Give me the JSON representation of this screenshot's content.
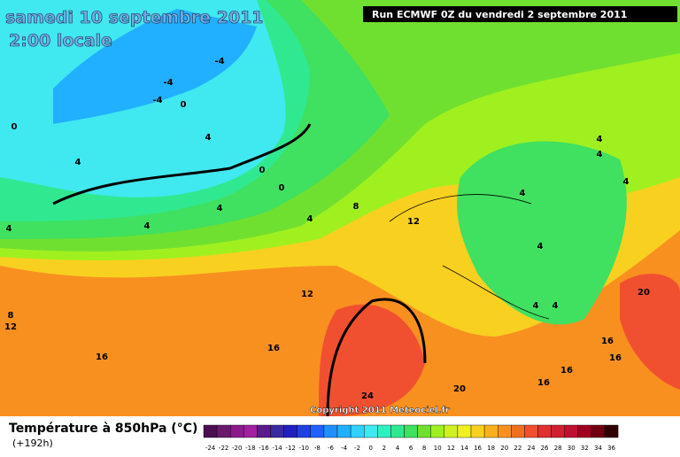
{
  "header": {
    "date": "samedi 10 septembre 2011",
    "time": "2:00 locale",
    "run": "Run ECMWF 0Z du vendredi 2 septembre 2011"
  },
  "copyright": "Copyright 2011 Meteociel.fr",
  "footer": {
    "title": "Température à 850hPa (°C)",
    "lead": "(+192h)"
  },
  "legend": {
    "values": [
      -24,
      -22,
      -20,
      -18,
      -16,
      -14,
      -12,
      -10,
      -8,
      -6,
      -4,
      -2,
      0,
      2,
      4,
      6,
      8,
      10,
      12,
      14,
      16,
      18,
      20,
      22,
      24,
      26,
      28,
      30,
      32,
      34,
      36
    ],
    "colors": [
      "#4b0f4f",
      "#6b1a6b",
      "#8b1a8b",
      "#a020a0",
      "#5a1a8a",
      "#3a2aa0",
      "#2020c0",
      "#2040e0",
      "#2060ff",
      "#2090ff",
      "#20b0ff",
      "#30d0ff",
      "#40e8f0",
      "#30f0c0",
      "#30e890",
      "#40e060",
      "#70e030",
      "#a0f020",
      "#d0f020",
      "#f0f020",
      "#f8d020",
      "#f8b020",
      "#f89020",
      "#f07020",
      "#f05030",
      "#e03030",
      "#d02030",
      "#c01030",
      "#a00020",
      "#700010",
      "#300000"
    ]
  },
  "contour_labels": [
    0,
    4,
    -4,
    4,
    0,
    0,
    4,
    4,
    4,
    8,
    12,
    12,
    16,
    16,
    8,
    12,
    4,
    4,
    4,
    4,
    16,
    16,
    16,
    16,
    20,
    20,
    24,
    4,
    4,
    4,
    4,
    -4,
    0,
    -4
  ]
}
